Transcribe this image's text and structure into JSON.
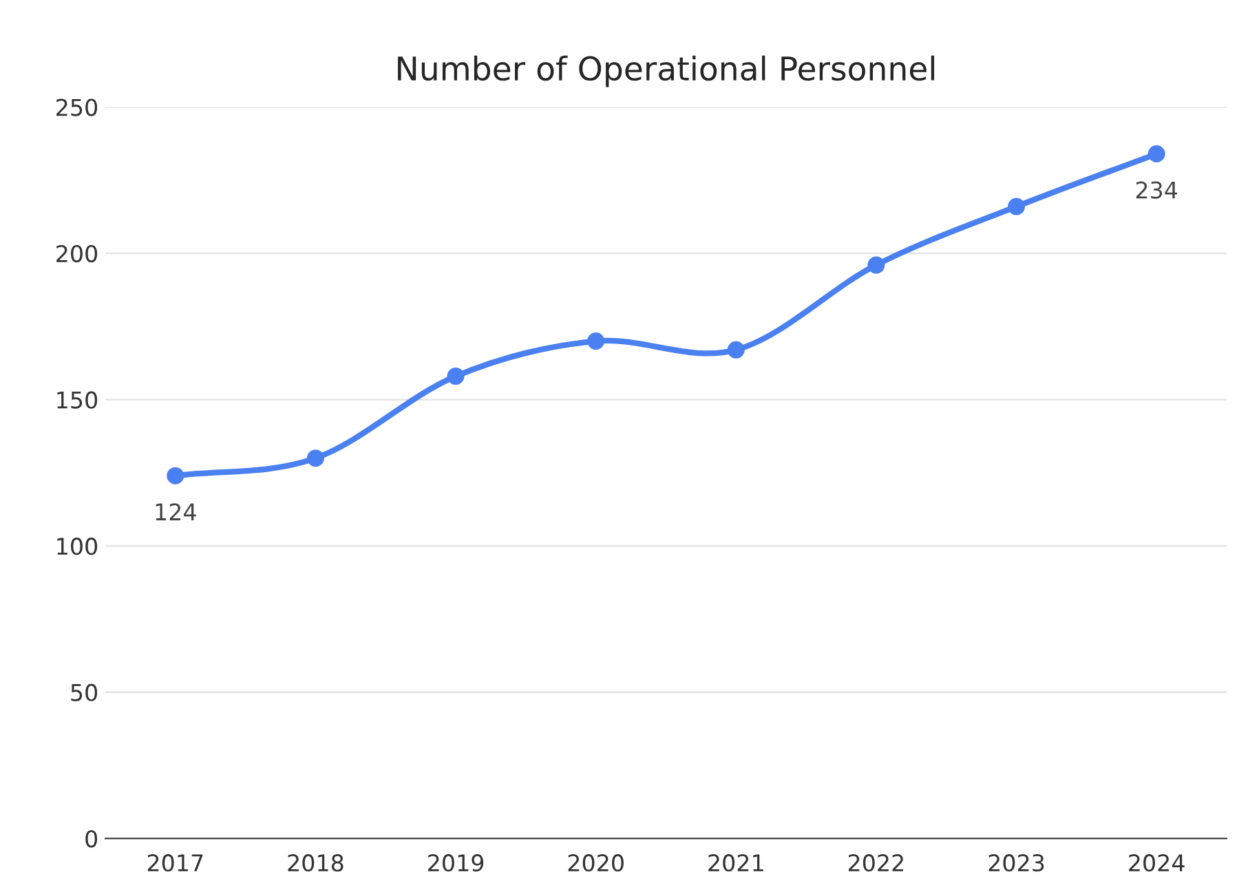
{
  "chart_data": {
    "type": "line",
    "title": "Number of Operational Personnel",
    "categories": [
      "2017",
      "2018",
      "2019",
      "2020",
      "2021",
      "2022",
      "2023",
      "2024"
    ],
    "series": [
      {
        "color": "#4a80f0",
        "values": [
          124,
          130,
          158,
          170,
          167,
          196,
          216,
          234
        ],
        "value_labels": [
          "124",
          null,
          null,
          null,
          null,
          null,
          null,
          "234"
        ]
      }
    ],
    "ylim": [
      0,
      250
    ],
    "yticks": [
      0,
      50,
      100,
      150,
      200,
      250
    ],
    "grid": "y",
    "marker": "circle",
    "line_style": "solid"
  }
}
